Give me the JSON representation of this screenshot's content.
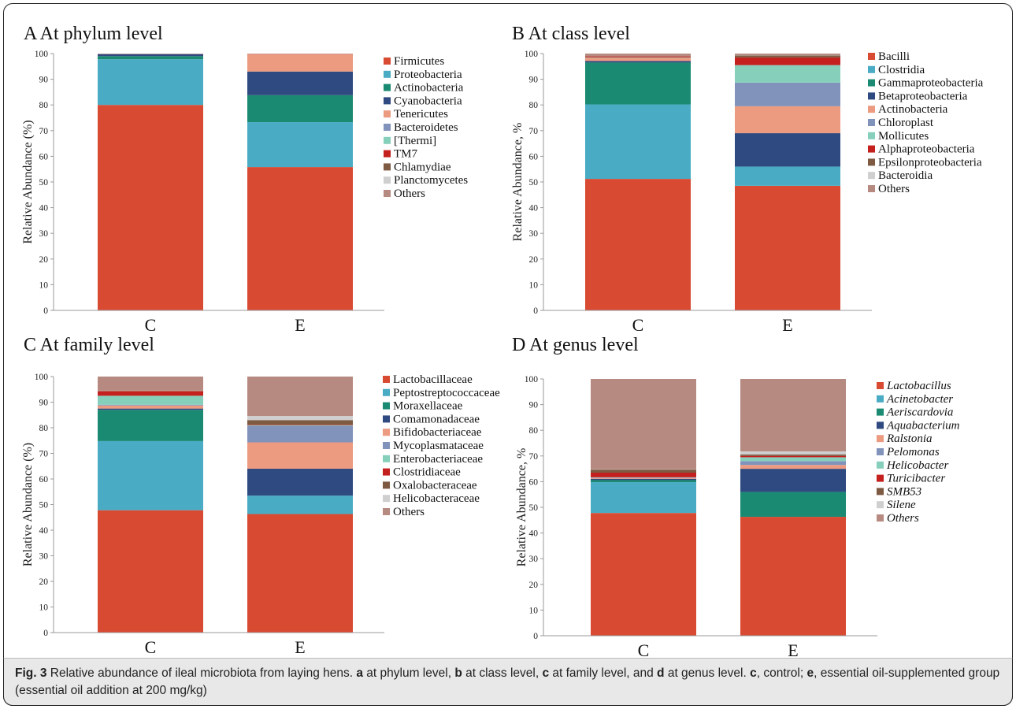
{
  "caption": {
    "fig_label": "Fig. 3",
    "segments": [
      {
        "t": " Relative abundance of ileal microbiota from laying hens. ",
        "b": false
      },
      {
        "t": "a",
        "b": true
      },
      {
        "t": " at phylum level, ",
        "b": false
      },
      {
        "t": "b",
        "b": true
      },
      {
        "t": " at class level, ",
        "b": false
      },
      {
        "t": "c",
        "b": true
      },
      {
        "t": " at family level, and ",
        "b": false
      },
      {
        "t": "d",
        "b": true
      },
      {
        "t": " at genus level. ",
        "b": false
      },
      {
        "t": "c",
        "b": true
      },
      {
        "t": ", control; ",
        "b": false
      },
      {
        "t": "e",
        "b": true
      },
      {
        "t": ", essential oil-supplemented group (essential oil addition at 200 mg/kg)",
        "b": false
      }
    ]
  },
  "chart_data": [
    {
      "panel": "A",
      "type": "stacked-bar",
      "title": "A At phylum level",
      "ylabel": "Relative Abundance (%)",
      "ylim": [
        0,
        100
      ],
      "yticks": [
        0,
        10,
        20,
        30,
        40,
        50,
        60,
        70,
        80,
        90,
        100
      ],
      "categories": [
        "C",
        "E"
      ],
      "legend_italic": false,
      "series": [
        {
          "name": "Firmicutes",
          "color": "#d94a32",
          "values": [
            80,
            55.8
          ]
        },
        {
          "name": "Proteobacteria",
          "color": "#4aacc4",
          "values": [
            17.8,
            17.5
          ]
        },
        {
          "name": "Actinobacteria",
          "color": "#1a8a72",
          "values": [
            1.2,
            10.5
          ]
        },
        {
          "name": "Cyanobacteria",
          "color": "#2f4a80",
          "values": [
            0.8,
            9.2
          ]
        },
        {
          "name": "Tenericutes",
          "color": "#ec9a80",
          "values": [
            0.1,
            6.8
          ]
        },
        {
          "name": "Bacteroidetes",
          "color": "#8193bb",
          "values": [
            0,
            0
          ]
        },
        {
          "name": "[Thermi]",
          "color": "#86d0bb",
          "values": [
            0,
            0
          ]
        },
        {
          "name": "TM7",
          "color": "#c4201e",
          "values": [
            0,
            0
          ]
        },
        {
          "name": "Chlamydiae",
          "color": "#7e5a42",
          "values": [
            0,
            0
          ]
        },
        {
          "name": "Planctomycetes",
          "color": "#cfcfcf",
          "values": [
            0,
            0
          ]
        },
        {
          "name": "Others",
          "color": "#b68a80",
          "values": [
            0.1,
            0.2
          ]
        }
      ]
    },
    {
      "panel": "B",
      "type": "stacked-bar",
      "title": "B At class level",
      "ylabel": "Relative Abundance, %",
      "ylim": [
        0,
        100
      ],
      "yticks": [
        0,
        10,
        20,
        30,
        40,
        50,
        60,
        70,
        80,
        90,
        100
      ],
      "categories": [
        "C",
        "E"
      ],
      "legend_italic": false,
      "series": [
        {
          "name": "Bacilli",
          "color": "#d94a32",
          "values": [
            51.2,
            48.5
          ]
        },
        {
          "name": "Clostridia",
          "color": "#4aacc4",
          "values": [
            29,
            7.5
          ]
        },
        {
          "name": "Gammaproteobacteria",
          "color": "#1a8a72",
          "values": [
            16.3,
            0
          ]
        },
        {
          "name": "Betaproteobacteria",
          "color": "#2f4a80",
          "values": [
            0.6,
            13
          ]
        },
        {
          "name": "Actinobacteria",
          "color": "#ec9a80",
          "values": [
            1.2,
            10.5
          ]
        },
        {
          "name": "Chloroplast",
          "color": "#8193bb",
          "values": [
            0,
            9.2
          ]
        },
        {
          "name": "Mollicutes",
          "color": "#86d0bb",
          "values": [
            0.2,
            6.8
          ]
        },
        {
          "name": "Alphaproteobacteria",
          "color": "#c4201e",
          "values": [
            0.4,
            3
          ]
        },
        {
          "name": "Epsilonproteobacteria",
          "color": "#7e5a42",
          "values": [
            0.1,
            0.8
          ]
        },
        {
          "name": "Bacteroidia",
          "color": "#cfcfcf",
          "values": [
            0,
            0.1
          ]
        },
        {
          "name": "Others",
          "color": "#b68a80",
          "values": [
            1,
            0.6
          ]
        }
      ]
    },
    {
      "panel": "C",
      "type": "stacked-bar",
      "title": "C At family level",
      "ylabel": "Relative Abundance (%)",
      "ylim": [
        0,
        100
      ],
      "yticks": [
        0,
        10,
        20,
        30,
        40,
        50,
        60,
        70,
        80,
        90,
        100
      ],
      "categories": [
        "C",
        "E"
      ],
      "legend_italic": false,
      "series": [
        {
          "name": "Lactobacillaceae",
          "color": "#d94a32",
          "values": [
            47.8,
            46.3
          ]
        },
        {
          "name": "Peptostreptococcaceae",
          "color": "#4aacc4",
          "values": [
            27,
            7.2
          ]
        },
        {
          "name": "Moraxellaceae",
          "color": "#1a8a72",
          "values": [
            12.2,
            0
          ]
        },
        {
          "name": "Comamonadaceae",
          "color": "#2f4a80",
          "values": [
            0.5,
            10.5
          ]
        },
        {
          "name": "Bifidobacteriaceae",
          "color": "#ec9a80",
          "values": [
            1.2,
            10.3
          ]
        },
        {
          "name": "Mycoplasmataceae",
          "color": "#8193bb",
          "values": [
            0.3,
            6.5
          ]
        },
        {
          "name": "Enterobacteriaceae",
          "color": "#86d0bb",
          "values": [
            3.5,
            0.2
          ]
        },
        {
          "name": "Clostridiaceae",
          "color": "#c4201e",
          "values": [
            1.8,
            0.2
          ]
        },
        {
          "name": "Oxalobacteraceae",
          "color": "#7e5a42",
          "values": [
            0.1,
            1.8
          ]
        },
        {
          "name": "Helicobacteraceae",
          "color": "#cfcfcf",
          "values": [
            0.1,
            1.6
          ]
        },
        {
          "name": "Others",
          "color": "#b68a80",
          "values": [
            5.5,
            15.4
          ]
        }
      ]
    },
    {
      "panel": "D",
      "type": "stacked-bar",
      "title": "D At genus level",
      "ylabel": "Relative Abundance, %",
      "ylim": [
        0,
        100
      ],
      "yticks": [
        0,
        10,
        20,
        30,
        40,
        50,
        60,
        70,
        80,
        90,
        100
      ],
      "categories": [
        "C",
        "E"
      ],
      "legend_italic": true,
      "series": [
        {
          "name": "Lactobacillus",
          "color": "#d94a32",
          "values": [
            47.8,
            46.3
          ]
        },
        {
          "name": "Acinetobacter",
          "color": "#4aacc4",
          "values": [
            12,
            0
          ]
        },
        {
          "name": "Aeriscardovia",
          "color": "#1a8a72",
          "values": [
            0.8,
            9.7
          ]
        },
        {
          "name": "Aquabacterium",
          "color": "#2f4a80",
          "values": [
            0.5,
            9
          ]
        },
        {
          "name": "Ralstonia",
          "color": "#ec9a80",
          "values": [
            0.3,
            1.5
          ]
        },
        {
          "name": "Pelomonas",
          "color": "#8193bb",
          "values": [
            0.2,
            1.5
          ]
        },
        {
          "name": "Helicobacter",
          "color": "#86d0bb",
          "values": [
            0.1,
            1.5
          ]
        },
        {
          "name": "Turicibacter",
          "color": "#c4201e",
          "values": [
            1.8,
            0.5
          ]
        },
        {
          "name": "SMB53",
          "color": "#7e5a42",
          "values": [
            1.2,
            0.6
          ]
        },
        {
          "name": "Silene",
          "color": "#cfcfcf",
          "values": [
            0.1,
            1.2
          ]
        },
        {
          "name": "Others",
          "color": "#b68a80",
          "values": [
            35.2,
            28.2
          ]
        }
      ]
    }
  ]
}
